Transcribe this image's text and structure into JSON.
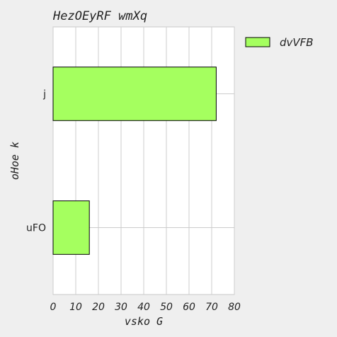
{
  "chart_data": {
    "type": "bar",
    "orientation": "horizontal",
    "title": "HezOEyRF wmXq",
    "xlabel": "vsko G",
    "ylabel": "oHoe k",
    "categories": [
      "j",
      "uFO"
    ],
    "series": [
      {
        "name": "dvVFB",
        "values": [
          72,
          16
        ],
        "color": "#a5ff5f"
      }
    ],
    "xlim": [
      0,
      80
    ],
    "xticks": [
      "0",
      "10",
      "20",
      "30",
      "40",
      "50",
      "60",
      "70",
      "80"
    ],
    "grid": true,
    "legend_position": "right-outside-top",
    "colors": {
      "background": "#efefef",
      "plot_background": "#ffffff",
      "bar_edge": "#000000",
      "grid": "#cccccc"
    }
  }
}
